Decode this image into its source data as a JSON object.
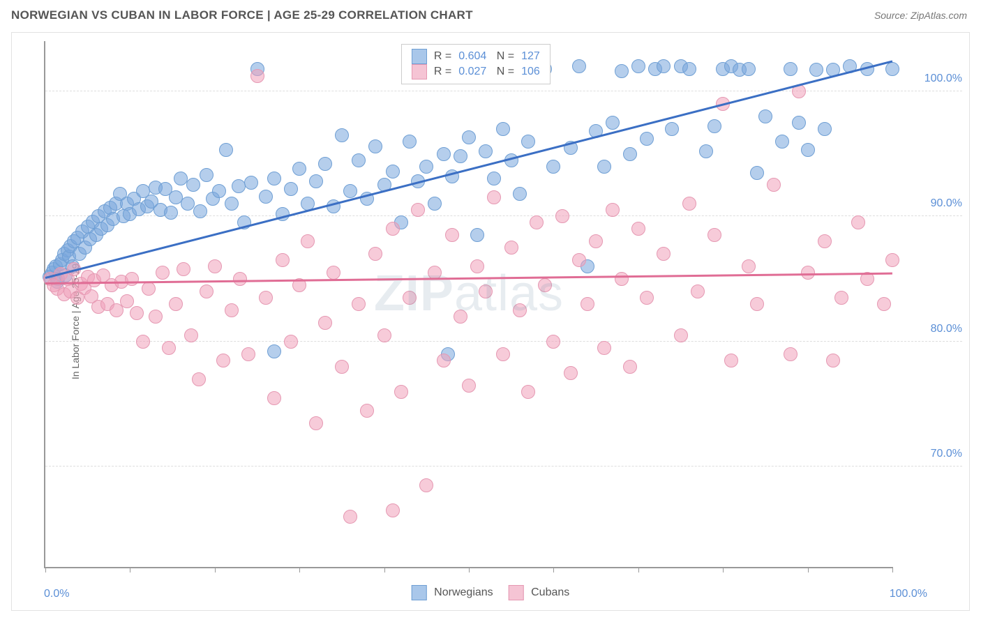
{
  "title": "NORWEGIAN VS CUBAN IN LABOR FORCE | AGE 25-29 CORRELATION CHART",
  "source": "Source: ZipAtlas.com",
  "ylabel": "In Labor Force | Age 25-29",
  "watermark_bold": "ZIP",
  "watermark_rest": "atlas",
  "chart": {
    "type": "scatter",
    "background_color": "#ffffff",
    "border_color": "#e2e2e2",
    "axis_color": "#999999",
    "grid_color": "#dddddd",
    "label_color": "#5b8fd6",
    "text_color": "#555555",
    "xlim": [
      0,
      100
    ],
    "ylim": [
      62,
      104
    ],
    "x_ticks": [
      0,
      10,
      20,
      30,
      40,
      50,
      60,
      70,
      80,
      90,
      100
    ],
    "x_tick_labels": {
      "0": "0.0%",
      "100": "100.0%"
    },
    "y_ticks": [
      70,
      80,
      90,
      100
    ],
    "y_tick_labels": [
      "70.0%",
      "80.0%",
      "90.0%",
      "100.0%"
    ],
    "marker_radius": 10,
    "marker_opacity": 0.55,
    "trend_width": 2.5,
    "series": [
      {
        "name": "Norwegians",
        "color_fill": "rgba(120,165,220,0.55)",
        "color_stroke": "#6f9fd4",
        "trend_color": "#3b6fc4",
        "legend_fill": "#a9c7ea",
        "legend_stroke": "#6f9fd4",
        "R": "0.604",
        "N": "127",
        "trend": {
          "x1": 0,
          "y1": 85.2,
          "x2": 100,
          "y2": 102.5
        },
        "points": [
          [
            0.5,
            85.2
          ],
          [
            0.8,
            85.5
          ],
          [
            1.0,
            85.8
          ],
          [
            1.2,
            86.0
          ],
          [
            1.4,
            84.8
          ],
          [
            1.5,
            85.0
          ],
          [
            1.7,
            86.2
          ],
          [
            2.0,
            86.5
          ],
          [
            2.2,
            87.0
          ],
          [
            2.4,
            85.3
          ],
          [
            2.6,
            87.3
          ],
          [
            2.8,
            86.8
          ],
          [
            3.0,
            87.6
          ],
          [
            3.2,
            86.0
          ],
          [
            3.4,
            88.0
          ],
          [
            3.8,
            88.3
          ],
          [
            4.0,
            87.0
          ],
          [
            4.4,
            88.8
          ],
          [
            4.7,
            87.5
          ],
          [
            5.0,
            89.2
          ],
          [
            5.3,
            88.2
          ],
          [
            5.6,
            89.6
          ],
          [
            6.0,
            88.5
          ],
          [
            6.3,
            90.0
          ],
          [
            6.6,
            89.0
          ],
          [
            7.0,
            90.4
          ],
          [
            7.3,
            89.3
          ],
          [
            7.7,
            90.7
          ],
          [
            8.0,
            89.8
          ],
          [
            8.3,
            91.0
          ],
          [
            8.8,
            91.8
          ],
          [
            9.2,
            90.0
          ],
          [
            9.6,
            91.0
          ],
          [
            10.0,
            90.2
          ],
          [
            10.5,
            91.4
          ],
          [
            11.0,
            90.6
          ],
          [
            11.5,
            92.0
          ],
          [
            12.0,
            90.8
          ],
          [
            12.5,
            91.2
          ],
          [
            13.0,
            92.3
          ],
          [
            13.6,
            90.5
          ],
          [
            14.2,
            92.2
          ],
          [
            14.8,
            90.3
          ],
          [
            15.4,
            91.5
          ],
          [
            16.0,
            93.0
          ],
          [
            16.8,
            91.0
          ],
          [
            17.5,
            92.5
          ],
          [
            18.3,
            90.4
          ],
          [
            19.0,
            93.3
          ],
          [
            19.8,
            91.4
          ],
          [
            20.5,
            92.0
          ],
          [
            21.3,
            95.3
          ],
          [
            22.0,
            91.0
          ],
          [
            22.8,
            92.4
          ],
          [
            23.5,
            89.5
          ],
          [
            24.3,
            92.7
          ],
          [
            25.0,
            101.8
          ],
          [
            26.0,
            91.6
          ],
          [
            27.0,
            93.0
          ],
          [
            28.0,
            90.2
          ],
          [
            27.0,
            79.2
          ],
          [
            29.0,
            92.2
          ],
          [
            30.0,
            93.8
          ],
          [
            31.0,
            91.0
          ],
          [
            32.0,
            92.8
          ],
          [
            33.0,
            94.2
          ],
          [
            34.0,
            90.8
          ],
          [
            35.0,
            96.5
          ],
          [
            36.0,
            92.0
          ],
          [
            37.0,
            94.5
          ],
          [
            38.0,
            91.4
          ],
          [
            39.0,
            95.6
          ],
          [
            40.0,
            92.5
          ],
          [
            41.0,
            93.6
          ],
          [
            42.0,
            89.5
          ],
          [
            43.0,
            96.0
          ],
          [
            44.0,
            92.8
          ],
          [
            45.0,
            94.0
          ],
          [
            46.0,
            91.0
          ],
          [
            47.0,
            95.0
          ],
          [
            48.0,
            93.2
          ],
          [
            49.0,
            94.8
          ],
          [
            50.0,
            96.3
          ],
          [
            51.0,
            88.5
          ],
          [
            52.0,
            95.2
          ],
          [
            47.5,
            79.0
          ],
          [
            53.0,
            93.0
          ],
          [
            54.0,
            97.0
          ],
          [
            55.0,
            94.5
          ],
          [
            56.0,
            91.8
          ],
          [
            57.0,
            96.0
          ],
          [
            58.0,
            101.5
          ],
          [
            60.0,
            94.0
          ],
          [
            59.0,
            101.8
          ],
          [
            62.0,
            95.5
          ],
          [
            63.0,
            102.0
          ],
          [
            64.0,
            86.0
          ],
          [
            65.0,
            96.8
          ],
          [
            66.0,
            94.0
          ],
          [
            67.0,
            97.5
          ],
          [
            68.0,
            101.6
          ],
          [
            69.0,
            95.0
          ],
          [
            70.0,
            102.0
          ],
          [
            71.0,
            96.2
          ],
          [
            72.0,
            101.8
          ],
          [
            73.0,
            102.0
          ],
          [
            74.0,
            97.0
          ],
          [
            75.0,
            102.0
          ],
          [
            76.0,
            101.8
          ],
          [
            78.0,
            95.2
          ],
          [
            80.0,
            101.8
          ],
          [
            81.0,
            102.0
          ],
          [
            82.0,
            101.7
          ],
          [
            79.0,
            97.2
          ],
          [
            85.0,
            98.0
          ],
          [
            83.0,
            101.8
          ],
          [
            87.0,
            96.0
          ],
          [
            88.0,
            101.8
          ],
          [
            89.0,
            97.5
          ],
          [
            84.0,
            93.5
          ],
          [
            91.0,
            101.7
          ],
          [
            92.0,
            97.0
          ],
          [
            95.0,
            102.0
          ],
          [
            97.0,
            101.8
          ],
          [
            100.0,
            101.8
          ],
          [
            90.0,
            95.3
          ],
          [
            93.0,
            101.7
          ]
        ]
      },
      {
        "name": "Cubans",
        "color_fill": "rgba(240,160,185,0.55)",
        "color_stroke": "#e598b2",
        "trend_color": "#e06d95",
        "legend_fill": "#f5c4d4",
        "legend_stroke": "#e598b2",
        "R": "0.027",
        "N": "106",
        "trend": {
          "x1": 0,
          "y1": 84.7,
          "x2": 100,
          "y2": 85.5
        },
        "points": [
          [
            0.6,
            85.0
          ],
          [
            1.0,
            84.5
          ],
          [
            1.4,
            84.2
          ],
          [
            1.8,
            85.4
          ],
          [
            2.2,
            83.8
          ],
          [
            2.6,
            85.0
          ],
          [
            3.0,
            84.0
          ],
          [
            3.4,
            85.8
          ],
          [
            3.8,
            83.5
          ],
          [
            4.2,
            84.6
          ],
          [
            4.6,
            84.3
          ],
          [
            5.0,
            85.2
          ],
          [
            5.4,
            83.6
          ],
          [
            5.8,
            84.9
          ],
          [
            6.3,
            82.8
          ],
          [
            6.8,
            85.3
          ],
          [
            7.3,
            83.0
          ],
          [
            7.8,
            84.5
          ],
          [
            8.4,
            82.5
          ],
          [
            9.0,
            84.8
          ],
          [
            9.6,
            83.2
          ],
          [
            10.2,
            85.0
          ],
          [
            10.8,
            82.3
          ],
          [
            11.5,
            80.0
          ],
          [
            12.2,
            84.2
          ],
          [
            13.0,
            82.0
          ],
          [
            13.8,
            85.5
          ],
          [
            14.6,
            79.5
          ],
          [
            15.4,
            83.0
          ],
          [
            16.3,
            85.8
          ],
          [
            17.2,
            80.5
          ],
          [
            18.1,
            77.0
          ],
          [
            19.0,
            84.0
          ],
          [
            20.0,
            86.0
          ],
          [
            21.0,
            78.5
          ],
          [
            22.0,
            82.5
          ],
          [
            23.0,
            85.0
          ],
          [
            24.0,
            79.0
          ],
          [
            25.0,
            101.2
          ],
          [
            26.0,
            83.5
          ],
          [
            27.0,
            75.5
          ],
          [
            28.0,
            86.5
          ],
          [
            29.0,
            80.0
          ],
          [
            30.0,
            84.5
          ],
          [
            31.0,
            88.0
          ],
          [
            32.0,
            73.5
          ],
          [
            33.0,
            81.5
          ],
          [
            34.0,
            85.5
          ],
          [
            35.0,
            78.0
          ],
          [
            36.0,
            66.0
          ],
          [
            37.0,
            83.0
          ],
          [
            38.0,
            74.5
          ],
          [
            39.0,
            87.0
          ],
          [
            40.0,
            80.5
          ],
          [
            41.0,
            89.0
          ],
          [
            42.0,
            76.0
          ],
          [
            43.0,
            83.5
          ],
          [
            44.0,
            90.5
          ],
          [
            45.0,
            68.5
          ],
          [
            46.0,
            85.5
          ],
          [
            47.0,
            78.5
          ],
          [
            48.0,
            88.5
          ],
          [
            49.0,
            82.0
          ],
          [
            50.0,
            76.5
          ],
          [
            51.0,
            86.0
          ],
          [
            52.0,
            84.0
          ],
          [
            53.0,
            91.5
          ],
          [
            54.0,
            79.0
          ],
          [
            55.0,
            87.5
          ],
          [
            41.0,
            66.5
          ],
          [
            56.0,
            82.5
          ],
          [
            57.0,
            76.0
          ],
          [
            58.0,
            89.5
          ],
          [
            59.0,
            84.5
          ],
          [
            60.0,
            80.0
          ],
          [
            61.0,
            90.0
          ],
          [
            62.0,
            77.5
          ],
          [
            63.0,
            86.5
          ],
          [
            64.0,
            83.0
          ],
          [
            65.0,
            88.0
          ],
          [
            66.0,
            79.5
          ],
          [
            67.0,
            90.5
          ],
          [
            68.0,
            85.0
          ],
          [
            69.0,
            78.0
          ],
          [
            70.0,
            89.0
          ],
          [
            71.0,
            83.5
          ],
          [
            73.0,
            87.0
          ],
          [
            75.0,
            80.5
          ],
          [
            76.0,
            91.0
          ],
          [
            77.0,
            84.0
          ],
          [
            79.0,
            88.5
          ],
          [
            80.0,
            99.0
          ],
          [
            81.0,
            78.5
          ],
          [
            83.0,
            86.0
          ],
          [
            84.0,
            83.0
          ],
          [
            86.0,
            92.5
          ],
          [
            88.0,
            79.0
          ],
          [
            90.0,
            85.5
          ],
          [
            89.0,
            100.0
          ],
          [
            92.0,
            88.0
          ],
          [
            94.0,
            83.5
          ],
          [
            93.0,
            78.5
          ],
          [
            96.0,
            89.5
          ],
          [
            97.0,
            85.0
          ],
          [
            99.0,
            83.0
          ],
          [
            100.0,
            86.5
          ]
        ]
      }
    ]
  }
}
